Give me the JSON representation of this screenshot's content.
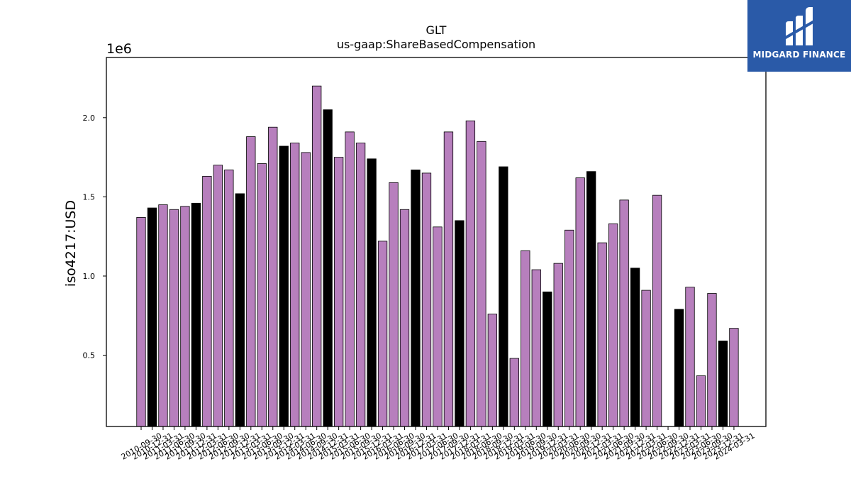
{
  "logo": {
    "text": "MIDGARD FINANCE",
    "background": "#2a5aa8"
  },
  "chart_data": {
    "type": "bar",
    "title": "GLT",
    "subtitle": "us-gaap:ShareBasedCompensation",
    "ylabel": "iso4217:USD",
    "xlabel": "",
    "y_offset_label": "1e6",
    "ylim": [
      0.05,
      2.38
    ],
    "yticks": [
      0.5,
      1.0,
      1.5,
      2.0
    ],
    "ytick_labels": [
      "0.5",
      "1.0",
      "1.5",
      "2.0"
    ],
    "grid": false,
    "colors": {
      "quarterly": "#b77fbd",
      "annual": "#000000",
      "edge": "#000000"
    },
    "categories": [
      "2010-09-30",
      "2010-12-31",
      "2011-03-31",
      "2011-06-30",
      "2011-09-30",
      "2011-12-31",
      "2012-03-31",
      "2012-06-30",
      "2012-09-30",
      "2012-12-31",
      "2013-03-31",
      "2013-06-30",
      "2013-09-30",
      "2013-12-31",
      "2014-03-31",
      "2014-06-30",
      "2014-09-30",
      "2014-12-31",
      "2015-03-31",
      "2015-06-30",
      "2015-09-30",
      "2015-12-31",
      "2016-03-31",
      "2016-06-30",
      "2016-09-30",
      "2016-12-31",
      "2017-03-31",
      "2017-06-30",
      "2017-09-30",
      "2017-12-31",
      "2018-03-31",
      "2018-06-30",
      "2018-09-30",
      "2018-12-31",
      "2019-03-31",
      "2019-06-30",
      "2019-09-30",
      "2019-12-31",
      "2020-03-31",
      "2020-06-30",
      "2020-09-30",
      "2020-12-31",
      "2021-03-31",
      "2021-06-30",
      "2021-09-30",
      "2021-12-31",
      "2022-03-31",
      "2022-06-30",
      "2022-09-30",
      "2022-12-31",
      "2023-03-31",
      "2023-06-30",
      "2023-09-30",
      "2023-12-31",
      "2024-03-31"
    ],
    "tick_labels": [
      "2010-09-30",
      "2010-12-31",
      "2011-03-31",
      "2011-06-30",
      "2011-09-30",
      "2011-12-31",
      "2012-03-31",
      "2012-06-30",
      "2012-09-30",
      "2012-12-31",
      "2013-03-31",
      "2013-06-30",
      "2013-09-30",
      "2013-12-31",
      "2014-03-31",
      "2014-06-30",
      "2014-09-30",
      "2014-12-31",
      "2015-03-31",
      "2015-06-30",
      "2015-09-30",
      "2015-12-31",
      "2016-03-31",
      "2016-06-30",
      "2016-09-30",
      "2016-12-31",
      "2017-03-31",
      "2017-06-30",
      "2017-09-30",
      "2017-12-31",
      "2018-03-31",
      "2018-06-30",
      "2018-09-30",
      "2018-12-31",
      "2019-03-31",
      "2019-06-30",
      "2019-09-30",
      "2019-12-31",
      "2020-03-31",
      "2020-06-30",
      "2020-09-30",
      "2020-12-31",
      "2021-03-31",
      "2021-06-30",
      "2021-09-30",
      "2021-12-31",
      "2022-03-31",
      "2022-06-30",
      "2022-09-30",
      "2022-12-31",
      "2023-03-31",
      "2023-06-30",
      "2023-09-30",
      "2023-12-31",
      "2024-03-31"
    ],
    "values": [
      1.37,
      1.43,
      1.45,
      1.42,
      1.44,
      1.46,
      1.63,
      1.7,
      1.67,
      1.52,
      1.88,
      1.71,
      1.94,
      1.82,
      1.84,
      1.78,
      2.2,
      2.05,
      1.75,
      1.91,
      1.84,
      1.74,
      1.22,
      1.59,
      1.42,
      1.67,
      1.65,
      1.31,
      1.91,
      1.35,
      1.98,
      1.85,
      0.76,
      1.69,
      0.48,
      1.16,
      1.04,
      0.9,
      1.08,
      1.29,
      1.62,
      1.66,
      1.21,
      1.33,
      1.48,
      1.05,
      0.91,
      1.51,
      null,
      0.79,
      0.93,
      0.37,
      0.89,
      0.59,
      0.67
    ],
    "annual": [
      false,
      true,
      false,
      false,
      false,
      true,
      false,
      false,
      false,
      true,
      false,
      false,
      false,
      true,
      false,
      false,
      false,
      true,
      false,
      false,
      false,
      true,
      false,
      false,
      false,
      true,
      false,
      false,
      false,
      true,
      false,
      false,
      false,
      true,
      false,
      false,
      false,
      true,
      false,
      false,
      false,
      true,
      false,
      false,
      false,
      true,
      false,
      false,
      false,
      true,
      false,
      false,
      false,
      true,
      false
    ]
  }
}
